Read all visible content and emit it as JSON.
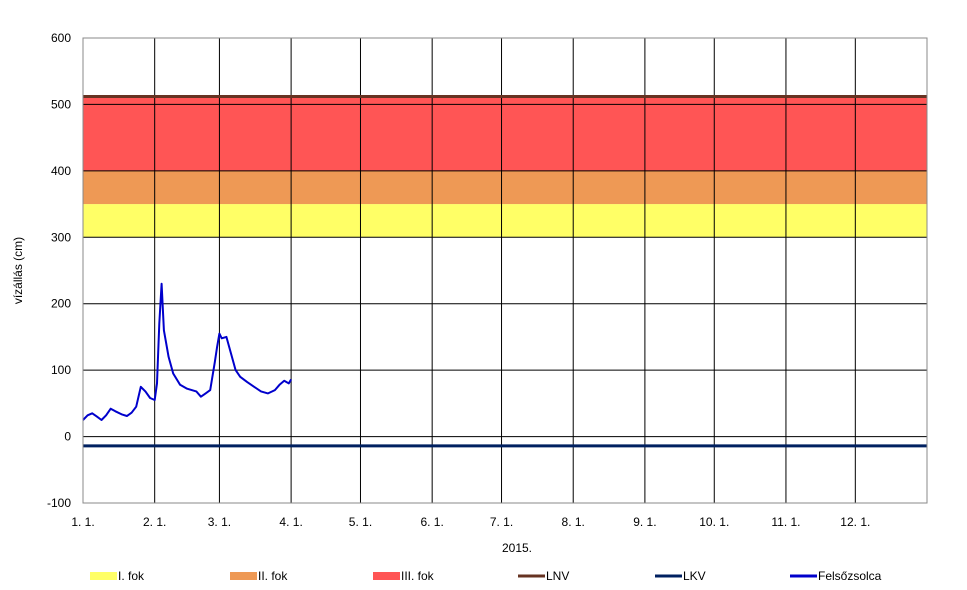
{
  "chart_data": {
    "type": "line",
    "xlabel": "2015.",
    "ylabel": "vízállás (cm)",
    "ylim": [
      -100,
      600
    ],
    "yticks": [
      -100,
      0,
      100,
      200,
      300,
      400,
      500,
      600
    ],
    "xlim": [
      "2015-01-01",
      "2016-01-01"
    ],
    "xticks": [
      "1. 1.",
      "2. 1.",
      "3. 1.",
      "4. 1.",
      "5. 1.",
      "6. 1.",
      "7. 1.",
      "8. 1.",
      "9. 1.",
      "10. 1.",
      "11. 1.",
      "12. 1."
    ],
    "grid": true,
    "legend_position": "bottom",
    "bands": [
      {
        "name": "I. fok",
        "from": 300,
        "to": 350,
        "color": "#ffff66"
      },
      {
        "name": "II. fok",
        "from": 350,
        "to": 400,
        "color": "#ee9955"
      },
      {
        "name": "III. fok",
        "from": 400,
        "to": 512,
        "color": "#ff5555"
      }
    ],
    "reference_lines": [
      {
        "name": "LNV",
        "value": 512,
        "color": "#663322"
      },
      {
        "name": "LKV",
        "value": -14,
        "color": "#002060"
      }
    ],
    "series": [
      {
        "name": "Felsőzsolca",
        "color": "#0000cc",
        "x": [
          "2015-01-01",
          "2015-01-03",
          "2015-01-05",
          "2015-01-07",
          "2015-01-09",
          "2015-01-11",
          "2015-01-13",
          "2015-01-15",
          "2015-01-18",
          "2015-01-20",
          "2015-01-22",
          "2015-01-24",
          "2015-01-26",
          "2015-01-28",
          "2015-01-30",
          "2015-02-01",
          "2015-02-02",
          "2015-02-03",
          "2015-02-04",
          "2015-02-05",
          "2015-02-07",
          "2015-02-09",
          "2015-02-12",
          "2015-02-15",
          "2015-02-17",
          "2015-02-19",
          "2015-02-21",
          "2015-02-23",
          "2015-02-25",
          "2015-02-27",
          "2015-02-28",
          "2015-03-01",
          "2015-03-02",
          "2015-03-04",
          "2015-03-06",
          "2015-03-08",
          "2015-03-10",
          "2015-03-13",
          "2015-03-16",
          "2015-03-19",
          "2015-03-22",
          "2015-03-25",
          "2015-03-27",
          "2015-03-29",
          "2015-03-31",
          "2015-04-01"
        ],
        "y": [
          25,
          32,
          35,
          30,
          25,
          32,
          42,
          38,
          33,
          31,
          36,
          45,
          75,
          68,
          58,
          55,
          80,
          170,
          230,
          160,
          120,
          95,
          78,
          72,
          70,
          68,
          60,
          65,
          70,
          112,
          135,
          155,
          148,
          150,
          125,
          100,
          90,
          82,
          75,
          68,
          65,
          70,
          78,
          84,
          80,
          86
        ]
      }
    ]
  },
  "legend": {
    "items": [
      {
        "label": "I. fok",
        "color": "#ffff66"
      },
      {
        "label": "II. fok",
        "color": "#ee9955"
      },
      {
        "label": "III. fok",
        "color": "#ff5555"
      },
      {
        "label": "LNV",
        "color": "#663322"
      },
      {
        "label": "LKV",
        "color": "#002060"
      },
      {
        "label": "Felsőzsolca",
        "color": "#0000cc"
      }
    ]
  }
}
